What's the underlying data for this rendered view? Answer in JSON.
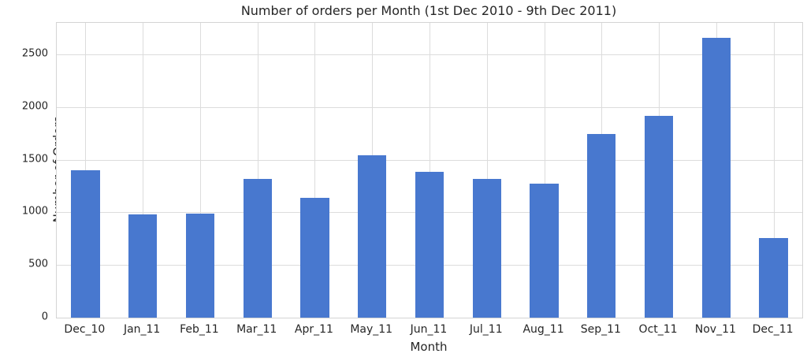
{
  "chart_data": {
    "type": "bar",
    "title": "Number of orders per Month (1st Dec 2010 - 9th Dec 2011)",
    "xlabel": "Month",
    "ylabel": "Number of Orders",
    "categories": [
      "Dec_10",
      "Jan_11",
      "Feb_11",
      "Mar_11",
      "Apr_11",
      "May_11",
      "Jun_11",
      "Jul_11",
      "Aug_11",
      "Sep_11",
      "Oct_11",
      "Nov_11",
      "Dec_11"
    ],
    "values": [
      1400,
      980,
      990,
      1320,
      1140,
      1540,
      1385,
      1320,
      1270,
      1745,
      1920,
      2655,
      760
    ],
    "ylim": [
      0,
      2800
    ],
    "yticks": [
      0,
      500,
      1000,
      1500,
      2000,
      2500
    ],
    "grid": true,
    "legend_position": "none",
    "bar_color": "#4878cf",
    "grid_color": "#dcdcdc",
    "spine_color": "#d4d4d4",
    "text_color": "#262626",
    "background_color": "#ffffff"
  }
}
